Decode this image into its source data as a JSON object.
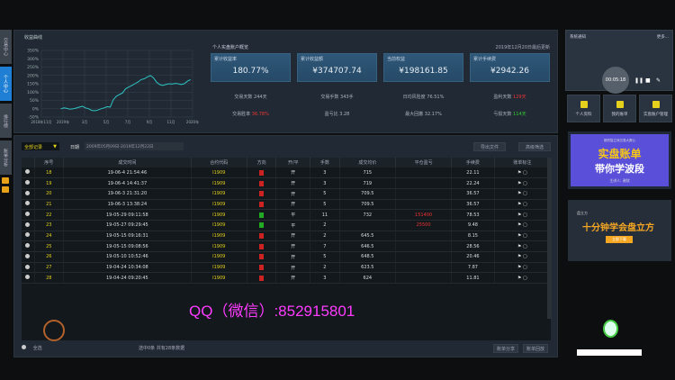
{
  "sidebar": {
    "tabs": [
      "交易中心",
      "个人中心",
      "排行榜",
      "账单分析"
    ],
    "active": 1
  },
  "chart_title": "收益曲线",
  "chart_data": {
    "type": "line",
    "ylim": [
      -50,
      350
    ],
    "yticks": [
      "350%",
      "300%",
      "250%",
      "200%",
      "150%",
      "100%",
      "50%",
      "0%",
      "-50%"
    ],
    "xticks": [
      "2018年11月",
      "2019年",
      "3月",
      "5月",
      "7月",
      "9月",
      "11月",
      "2020年"
    ],
    "color": "#2ec4c4",
    "grid": true,
    "values": [
      0,
      5,
      2,
      -3,
      0,
      4,
      10,
      15,
      5,
      0,
      -10,
      -12,
      -8,
      0,
      5,
      12,
      10,
      55,
      75,
      85,
      95,
      120,
      130,
      140,
      150,
      160,
      175,
      180,
      190,
      200,
      185,
      160,
      145,
      140,
      145,
      150,
      148,
      152,
      150,
      145,
      150,
      165,
      175
    ]
  },
  "overview": {
    "title": "个人实盘账户概览",
    "updated": "2019年12月20日最后更新",
    "cards": [
      {
        "label": "累计收益率",
        "value": "180.77%"
      },
      {
        "label": "累计收益额",
        "value": "¥374707.74"
      },
      {
        "label": "当前权益",
        "value": "¥198161.85"
      },
      {
        "label": "累计手续费",
        "value": "¥2942.26"
      }
    ],
    "stats_row1": [
      {
        "label": "交易天数",
        "value": "244天"
      },
      {
        "label": "交易手数",
        "value": "343手"
      },
      {
        "label": "日均风险度",
        "value": "76.51%"
      },
      {
        "label": "盈利天数",
        "value": "129天",
        "color": "red"
      }
    ],
    "stats_row2": [
      {
        "label": "交易胜率",
        "value": "36.78%",
        "color": "red"
      },
      {
        "label": "盈亏比",
        "value": "3.28"
      },
      {
        "label": "最大回撤",
        "value": "32.17%"
      },
      {
        "label": "亏损天数",
        "value": "114天",
        "color": "green"
      }
    ]
  },
  "filter": {
    "selected": "全部记录",
    "date_label": "日期",
    "date_range": "2009年05月09日-2019年12月22日",
    "export": "导出文件",
    "advanced": "高级筛选"
  },
  "table": {
    "headers": [
      "序号",
      "成交时间",
      "合约代码",
      "方向",
      "开/平",
      "手数",
      "成交均价",
      "平仓盈亏",
      "手续费",
      "账单标注"
    ],
    "rows": [
      [
        "18",
        "19-06-4  21:54:46",
        "I1909",
        "买",
        "开",
        "3",
        "715",
        "",
        "22.11"
      ],
      [
        "19",
        "19-06-4  14:41:37",
        "I1909",
        "买",
        "开",
        "3",
        "719",
        "",
        "22.24"
      ],
      [
        "20",
        "19-06-3  21:31:20",
        "I1909",
        "买",
        "开",
        "5",
        "709.5",
        "",
        "36.57"
      ],
      [
        "21",
        "19-06-3  13:38:24",
        "I1909",
        "买",
        "开",
        "5",
        "709.5",
        "",
        "36.57"
      ],
      [
        "22",
        "19-05-29 09:11:58",
        "I1909",
        "卖",
        "平",
        "11",
        "732",
        "151400",
        "78.53"
      ],
      [
        "23",
        "19-05-27 09:29:45",
        "I1909",
        "卖",
        "平",
        "2",
        "",
        "25500",
        "9.48"
      ],
      [
        "24",
        "19-05-15 09:16:31",
        "I1909",
        "买",
        "开",
        "2",
        "645.5",
        "",
        "8.15"
      ],
      [
        "25",
        "19-05-15 09:08:56",
        "I1909",
        "买",
        "开",
        "7",
        "646.5",
        "",
        "28.56"
      ],
      [
        "26",
        "19-05-10 10:52:46",
        "I1909",
        "买",
        "开",
        "5",
        "648.5",
        "",
        "20.46"
      ],
      [
        "27",
        "19-04-24 10:34:08",
        "I1909",
        "买",
        "开",
        "2",
        "623.5",
        "",
        "7.87"
      ],
      [
        "28",
        "19-04-24 09:20:45",
        "I1909",
        "买",
        "开",
        "3",
        "624",
        "",
        "11.81"
      ]
    ]
  },
  "footer": {
    "select_all": "全选",
    "summary": "选中0条 共有28条数据",
    "share": "账单分享",
    "replay": "账单回放"
  },
  "right": {
    "notice": "系统通知",
    "more": "更多...",
    "timer": "00:05:18",
    "buttons": [
      "个人资料",
      "我的账单",
      "实盘账户管理"
    ],
    "banner1": {
      "tag": "期货智立体交易大赛公",
      "line1": "实盘账单",
      "line2": "带你学波段",
      "host": "主讲人: 谢欣"
    },
    "banner2": {
      "brand": "盘立方",
      "line": "十分钟学会盘立方",
      "btn": "立即下载"
    }
  },
  "watermark": "QQ（微信）:852915801"
}
